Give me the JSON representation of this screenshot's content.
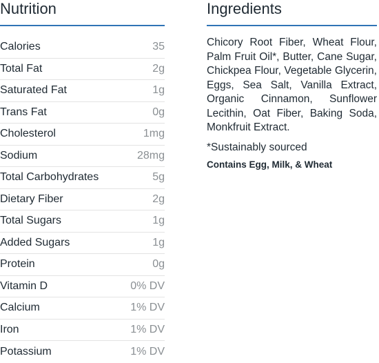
{
  "nutrition": {
    "title": "Nutrition",
    "rows": [
      {
        "name": "Calories",
        "value": "35"
      },
      {
        "name": "Total Fat",
        "value": "2g"
      },
      {
        "name": "Saturated Fat",
        "value": "1g"
      },
      {
        "name": "Trans Fat",
        "value": "0g"
      },
      {
        "name": "Cholesterol",
        "value": "1mg"
      },
      {
        "name": "Sodium",
        "value": "28mg"
      },
      {
        "name": "Total Carbohydrates",
        "value": "5g"
      },
      {
        "name": "Dietary Fiber",
        "value": "2g"
      },
      {
        "name": "Total Sugars",
        "value": "1g"
      },
      {
        "name": "Added Sugars",
        "value": "1g"
      },
      {
        "name": "Protein",
        "value": "0g"
      },
      {
        "name": "Vitamin D",
        "value": "0% DV"
      },
      {
        "name": "Calcium",
        "value": "1% DV"
      },
      {
        "name": "Iron",
        "value": "1% DV"
      },
      {
        "name": "Potassium",
        "value": "1% DV"
      }
    ]
  },
  "ingredients": {
    "title": "Ingredients",
    "text": "Chicory Root Fiber, Wheat Flour, Palm Fruit Oil*, Butter, Cane Sugar, Chickpea Flour, Vegetable Glycerin, Eggs, Sea Salt, Vanilla Extract, Organic Cinnamon, Sunflower Lecithin, Oat Fiber, Baking Soda, Monkfruit Extract.",
    "footnote": "*Sustainably sourced",
    "allergens": "Contains Egg, Milk, & Wheat"
  },
  "colors": {
    "accent_rule": "#2f73b5",
    "text": "#1f2a33",
    "value_text": "#8a8f93",
    "row_divider": "#e3e3e3"
  }
}
